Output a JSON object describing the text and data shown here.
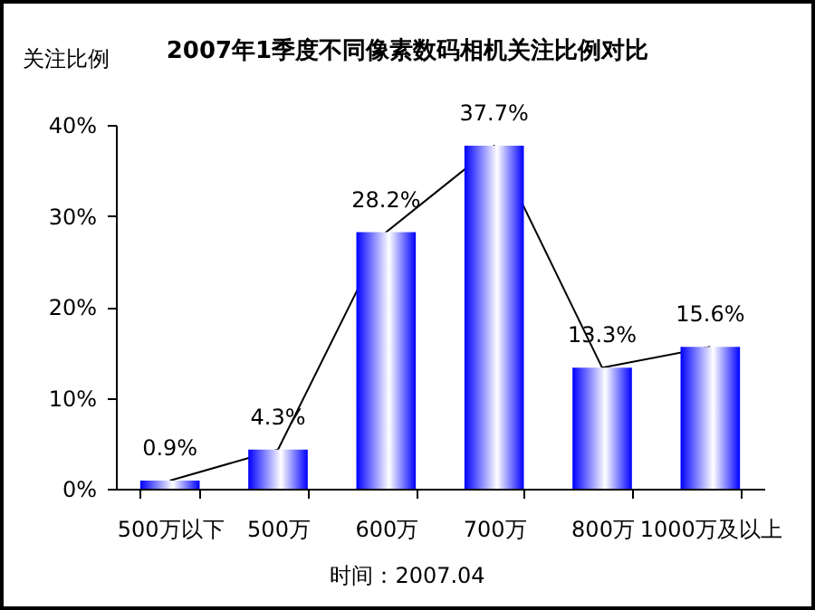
{
  "chart_data": {
    "type": "bar",
    "title": "2007年1季度不同像素数码相机关注比例对比",
    "ylabel": "关注比例",
    "categories": [
      "500万以下",
      "500万",
      "600万",
      "700万",
      "800万",
      "1000万及以上"
    ],
    "series": [
      {
        "type": "line",
        "color": "#000000",
        "values": [
          0.9,
          4.3,
          28.2,
          37.7,
          13.3,
          15.6
        ]
      },
      {
        "color": "#0000ff",
        "values": [
          0.9,
          4.3,
          28.2,
          37.7,
          13.3,
          15.6
        ],
        "value_labels": [
          "0.9%",
          "4.3%",
          "28.2%",
          "37.7%",
          "13.3%",
          "15.6%"
        ]
      }
    ],
    "ylim": [
      0,
      40
    ],
    "yticks": [
      {
        "value": 0,
        "label": "0%"
      },
      {
        "value": 10,
        "label": "10%"
      },
      {
        "value": 20,
        "label": "20%"
      },
      {
        "value": 30,
        "label": "30%"
      },
      {
        "value": 40,
        "label": "40%"
      }
    ],
    "grid": false,
    "legend": false,
    "annotations": [
      "时间：2007.04"
    ]
  }
}
